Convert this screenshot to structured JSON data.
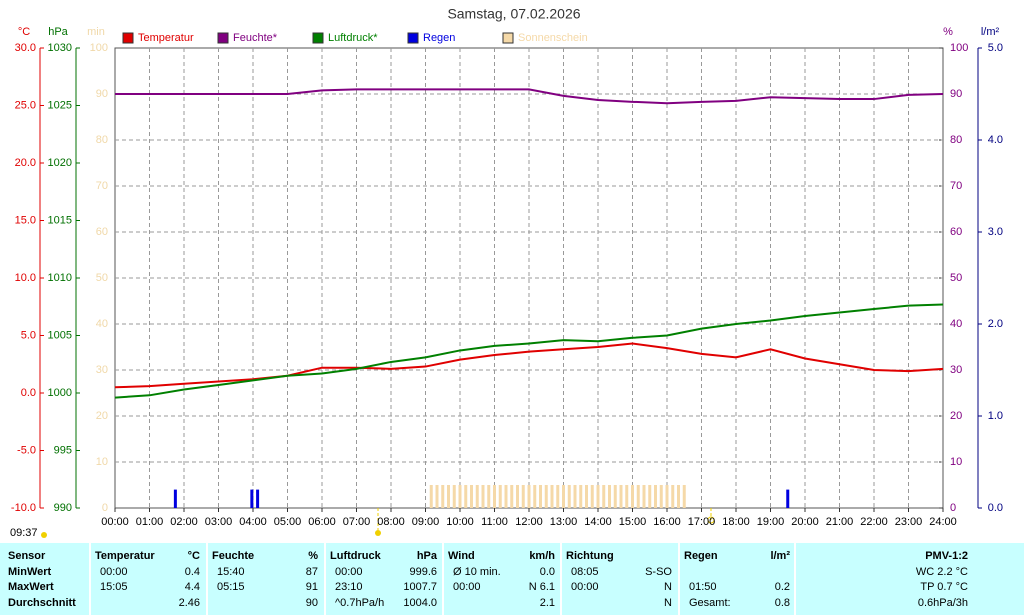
{
  "chart_data": {
    "type": "line",
    "title": "Samstag, 07.02.2026",
    "time": "09:37",
    "xlim": [
      0,
      1440
    ],
    "xticks": [
      {
        "value": 0,
        "label": "00:00"
      },
      {
        "value": 60,
        "label": "01:00"
      },
      {
        "value": 120,
        "label": "02:00"
      },
      {
        "value": 180,
        "label": "03:00"
      },
      {
        "value": 240,
        "label": "04:00"
      },
      {
        "value": 300,
        "label": "05:00"
      },
      {
        "value": 360,
        "label": "06:00"
      },
      {
        "value": 420,
        "label": "07:00"
      },
      {
        "value": 480,
        "label": "08:00"
      },
      {
        "value": 540,
        "label": "09:00"
      },
      {
        "value": 600,
        "label": "10:00"
      },
      {
        "value": 660,
        "label": "11:00"
      },
      {
        "value": 720,
        "label": "12:00"
      },
      {
        "value": 780,
        "label": "13:00"
      },
      {
        "value": 840,
        "label": "14:00"
      },
      {
        "value": 900,
        "label": "15:00"
      },
      {
        "value": 960,
        "label": "16:00"
      },
      {
        "value": 1020,
        "label": "17:00"
      },
      {
        "value": 1080,
        "label": "18:00"
      },
      {
        "value": 1140,
        "label": "19:00"
      },
      {
        "value": 1200,
        "label": "20:00"
      },
      {
        "value": 1260,
        "label": "21:00"
      },
      {
        "value": 1320,
        "label": "22:00"
      },
      {
        "value": 1380,
        "label": "23:00"
      },
      {
        "value": 1440,
        "label": "24:00"
      }
    ],
    "grid": true,
    "axes": [
      {
        "unit": "°C",
        "color": "#e00000",
        "lim": [
          -10,
          30
        ],
        "ticks": [
          {
            "value": -10,
            "label": "-10.0"
          },
          {
            "value": -5,
            "label": "-5.0"
          },
          {
            "value": 0,
            "label": "0.0"
          },
          {
            "value": 5,
            "label": "5.0"
          },
          {
            "value": 10,
            "label": "10.0"
          },
          {
            "value": 15,
            "label": "15.0"
          },
          {
            "value": 20,
            "label": "20.0"
          },
          {
            "value": 25,
            "label": "25.0"
          },
          {
            "value": 30,
            "label": "30.0"
          }
        ]
      },
      {
        "unit": "hPa",
        "color": "#007000",
        "lim": [
          990,
          1030
        ],
        "ticks": [
          990,
          995,
          1000,
          1005,
          1010,
          1015,
          1020,
          1025,
          1030
        ]
      },
      {
        "unit": "min",
        "color": "#f0d8a8",
        "lim": [
          0,
          100
        ],
        "ticks": [
          0,
          10,
          20,
          30,
          40,
          50,
          60,
          70,
          80,
          90,
          100
        ]
      },
      {
        "unit": "%",
        "color": "#800080",
        "lim": [
          0,
          100
        ],
        "ticks": [
          0,
          10,
          20,
          30,
          40,
          50,
          60,
          70,
          80,
          90,
          100
        ]
      },
      {
        "unit": "l/m²",
        "color": "#000080",
        "lim": [
          0,
          5
        ],
        "ticks": [
          {
            "value": 0,
            "label": "0.0"
          },
          {
            "value": 1,
            "label": "1.0"
          },
          {
            "value": 2,
            "label": "2.0"
          },
          {
            "value": 3,
            "label": "3.0"
          },
          {
            "value": 4,
            "label": "4.0"
          },
          {
            "value": 5,
            "label": "5.0"
          }
        ]
      }
    ],
    "x": [
      0,
      60,
      120,
      180,
      240,
      300,
      360,
      420,
      480,
      540,
      600,
      660,
      720,
      780,
      840,
      900,
      960,
      1020,
      1080,
      1140,
      1200,
      1260,
      1320,
      1380,
      1440
    ],
    "series": [
      {
        "name": "Temperatur",
        "color": "#e00000",
        "axis": 0,
        "kind": "line",
        "values": [
          0.5,
          0.6,
          0.8,
          1.0,
          1.2,
          1.5,
          2.2,
          2.2,
          2.1,
          2.3,
          2.9,
          3.3,
          3.6,
          3.8,
          4.0,
          4.3,
          3.9,
          3.4,
          3.1,
          3.8,
          3.0,
          2.5,
          2.0,
          1.9,
          2.1
        ]
      },
      {
        "name": "Feuchte*",
        "color": "#800080",
        "axis": 3,
        "kind": "line",
        "values": [
          90,
          90,
          90,
          90,
          90,
          90,
          90.8,
          91,
          91,
          91,
          91,
          91,
          91,
          89.6,
          88.7,
          88.3,
          88,
          88.3,
          88.5,
          89.3,
          89.1,
          88.9,
          88.9,
          89.8,
          90
        ]
      },
      {
        "name": "Luftdruck*",
        "color": "#008000",
        "axis": 1,
        "kind": "line",
        "values": [
          999.6,
          999.8,
          1000.3,
          1000.7,
          1001.1,
          1001.5,
          1001.7,
          1002.1,
          1002.7,
          1003.1,
          1003.7,
          1004.1,
          1004.3,
          1004.6,
          1004.5,
          1004.8,
          1005.0,
          1005.6,
          1006.0,
          1006.3,
          1006.7,
          1007.0,
          1007.3,
          1007.6,
          1007.7
        ]
      },
      {
        "name": "Regen",
        "color": "#0000e0",
        "axis": 4,
        "kind": "bar",
        "x": [
          105,
          238,
          248,
          1170
        ],
        "values": [
          0.2,
          0.2,
          0.2,
          0.2
        ]
      },
      {
        "name": "Sonnenschein",
        "color": "#f5d9a8",
        "axis": 2,
        "kind": "bar",
        "x": [
          550,
          560,
          570,
          580,
          590,
          600,
          610,
          620,
          630,
          640,
          650,
          660,
          670,
          680,
          690,
          700,
          710,
          720,
          730,
          740,
          750,
          760,
          770,
          780,
          790,
          800,
          810,
          820,
          830,
          840,
          850,
          860,
          870,
          880,
          890,
          900,
          910,
          920,
          930,
          940,
          950,
          960,
          970,
          980,
          990
        ],
        "values": [
          5,
          5,
          5,
          5,
          5,
          5,
          5,
          5,
          5,
          5,
          5,
          5,
          5,
          5,
          5,
          5,
          5,
          5,
          5,
          5,
          5,
          5,
          5,
          5,
          5,
          5,
          5,
          5,
          5,
          5,
          5,
          5,
          5,
          5,
          5,
          5,
          5,
          5,
          5,
          5,
          5,
          5,
          5,
          5,
          5
        ]
      }
    ]
  },
  "table": {
    "header": [
      {
        "title": "Sensor"
      },
      {
        "title": "Temperatur",
        "unit": "°C"
      },
      {
        "title": "Feuchte",
        "unit": "%"
      },
      {
        "title": "Luftdruck",
        "unit": "hPa"
      },
      {
        "title": "Wind",
        "unit": "km/h"
      },
      {
        "title": "Richtung"
      },
      {
        "title": "Regen",
        "unit": "l/m²"
      },
      {
        "title": "PMV-1:2"
      }
    ],
    "rows": [
      {
        "label": "MinWert",
        "cells": [
          [
            "00:00",
            "0.4"
          ],
          [
            "15:40",
            "87"
          ],
          [
            "00:00",
            "999.6"
          ],
          [
            "Ø 10 min.",
            "0.0"
          ],
          [
            "08:05",
            "S-SO"
          ],
          [],
          [
            "WC 2.2 °C"
          ]
        ]
      },
      {
        "label": "MaxWert",
        "cells": [
          [
            "15:05",
            "4.4"
          ],
          [
            "05:15",
            "91"
          ],
          [
            "23:10",
            "1007.7"
          ],
          [
            "00:00",
            "N 6.1"
          ],
          [
            "00:00",
            "N"
          ],
          [
            "01:50",
            "0.2"
          ],
          [
            "TP 0.7 °C"
          ]
        ]
      },
      {
        "label": "Durchschnitt",
        "cells": [
          [
            "2.46"
          ],
          [
            "90"
          ],
          [
            "^0.7hPa/h",
            "1004.0"
          ],
          [
            "2.1"
          ],
          [
            "N"
          ],
          [
            "Gesamt:",
            "0.8"
          ],
          [
            "0.6hPa/3h"
          ]
        ]
      }
    ]
  }
}
